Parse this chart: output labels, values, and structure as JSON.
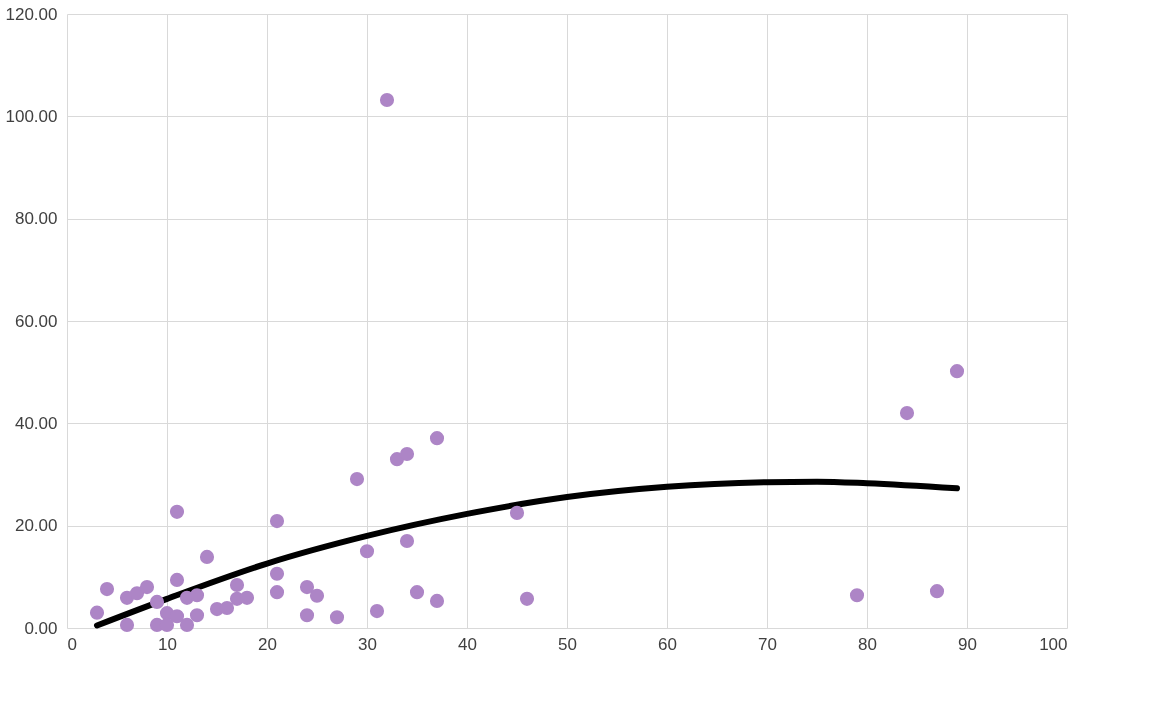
{
  "chart_data": {
    "type": "scatter",
    "xlim": [
      0,
      100
    ],
    "xticks": [
      0,
      10,
      20,
      30,
      40,
      50,
      60,
      70,
      80,
      90,
      100
    ],
    "ylim": [
      0,
      120
    ],
    "yticks": [
      {
        "value": 0,
        "label": "0.00"
      },
      {
        "value": 20,
        "label": "20.00"
      },
      {
        "value": 40,
        "label": "40.00"
      },
      {
        "value": 60,
        "label": "60.00"
      },
      {
        "value": 80,
        "label": "80.00"
      },
      {
        "value": 100,
        "label": "100.00"
      },
      {
        "value": 120,
        "label": "120.00"
      }
    ],
    "grid": true,
    "marker": "circle",
    "series": [
      {
        "color": "#ad85c6",
        "x": [
          3,
          4,
          6,
          6,
          7,
          8,
          9,
          9,
          10,
          10,
          11,
          11,
          11,
          12,
          12,
          13,
          13,
          14,
          15,
          16,
          17,
          17,
          18,
          21,
          21,
          21,
          24,
          24,
          25,
          27,
          29,
          30,
          31,
          32,
          33,
          34,
          34,
          35,
          37,
          37,
          45,
          46,
          79,
          84,
          87,
          89
        ],
        "values": [
          3.0,
          7.6,
          5.9,
          0.6,
          6.8,
          8.0,
          5.1,
          0.6,
          2.9,
          0.6,
          9.4,
          22.7,
          2.3,
          5.9,
          0.6,
          6.4,
          2.5,
          13.9,
          3.7,
          3.9,
          8.4,
          5.7,
          5.9,
          20.9,
          10.6,
          7.0,
          8.0,
          2.5,
          6.3,
          2.1,
          29.1,
          15.0,
          3.3,
          103.2,
          33.0,
          34.0,
          17.0,
          7.0,
          37.1,
          5.3,
          22.5,
          5.7,
          6.4,
          42.0,
          7.2,
          50.2
        ]
      },
      {
        "type": "line",
        "color": "#000000",
        "line_style": "solid",
        "marker": "none",
        "x": [
          3,
          10,
          20,
          30,
          40,
          50,
          60,
          70,
          75,
          80,
          89
        ],
        "values": [
          0.5,
          5.7,
          12.6,
          18.0,
          22.3,
          25.6,
          27.6,
          28.5,
          28.6,
          28.3,
          27.3
        ]
      }
    ]
  }
}
